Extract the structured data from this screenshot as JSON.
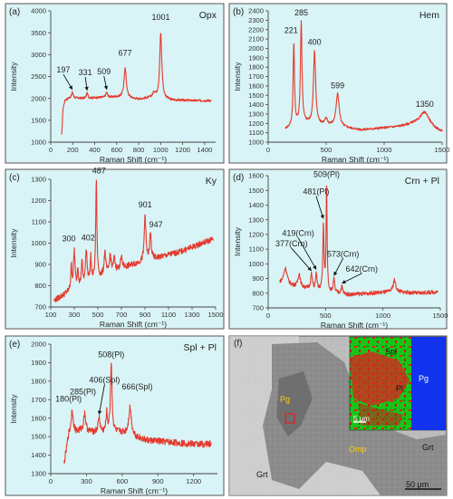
{
  "figure": {
    "panel_f": {
      "letter": "(f)",
      "labels": {
        "pg_left": "Pg",
        "pg_right": "Pg",
        "grt_left": "Grt",
        "grt_right": "Grt",
        "omp": "Omp",
        "spl": "Spl",
        "pl": "Pl",
        "inset_scale": "5 μm",
        "scale": "50 μm"
      }
    }
  },
  "chart_data": [
    {
      "id": "a",
      "type": "line",
      "letter": "(a)",
      "title": "Opx",
      "xlabel": "Raman Shift (cm⁻¹)",
      "ylabel": "Intensity",
      "xlim": [
        0,
        1500
      ],
      "ylim": [
        1000,
        4000
      ],
      "xticks": [
        0,
        200,
        400,
        600,
        800,
        1000,
        1200,
        1400
      ],
      "yticks": [
        1000,
        1500,
        2000,
        2500,
        3000,
        3500,
        4000
      ],
      "baseline": [
        [
          100,
          1150
        ],
        [
          112,
          1780
        ],
        [
          130,
          1960
        ],
        [
          170,
          2010
        ],
        [
          300,
          2000
        ],
        [
          450,
          2020
        ],
        [
          600,
          2030
        ],
        [
          800,
          1980
        ],
        [
          950,
          2030
        ],
        [
          1100,
          1960
        ],
        [
          1300,
          1950
        ],
        [
          1460,
          1950
        ]
      ],
      "peaks": [
        {
          "x": 197,
          "h": 130,
          "w": 9,
          "label": "197"
        },
        {
          "x": 331,
          "h": 110,
          "w": 9,
          "label": "331"
        },
        {
          "x": 509,
          "h": 110,
          "w": 9,
          "label": "509"
        },
        {
          "x": 677,
          "h": 670,
          "w": 13,
          "label": "677"
        },
        {
          "x": 1001,
          "h": 1490,
          "w": 11,
          "label": "1001"
        },
        {
          "x": 940,
          "h": 90,
          "w": 14
        }
      ],
      "noise": 25
    },
    {
      "id": "b",
      "type": "line",
      "letter": "(b)",
      "title": "Hem",
      "xlabel": "Raman Shift (cm⁻¹)",
      "ylabel": "Intensity",
      "xlim": [
        0,
        1500
      ],
      "ylim": [
        1000,
        2400
      ],
      "xticks": [
        0,
        500,
        1000,
        1500
      ],
      "yticks": [
        1000,
        1100,
        1200,
        1300,
        1400,
        1500,
        1600,
        1700,
        1800,
        1900,
        2000,
        2100,
        2200,
        2300,
        2400
      ],
      "baseline": [
        [
          150,
          1140
        ],
        [
          200,
          1160
        ],
        [
          300,
          1200
        ],
        [
          500,
          1180
        ],
        [
          800,
          1130
        ],
        [
          1100,
          1160
        ],
        [
          1250,
          1180
        ],
        [
          1500,
          1100
        ]
      ],
      "peaks": [
        {
          "x": 221,
          "h": 880,
          "w": 7,
          "label": "221"
        },
        {
          "x": 285,
          "h": 1080,
          "w": 8,
          "label": "285"
        },
        {
          "x": 400,
          "h": 780,
          "w": 11,
          "label": "400"
        },
        {
          "x": 599,
          "h": 350,
          "w": 16,
          "label": "599"
        },
        {
          "x": 1350,
          "h": 170,
          "w": 55,
          "label": "1350"
        },
        {
          "x": 500,
          "h": 60,
          "w": 14
        }
      ],
      "noise": 12
    },
    {
      "id": "c",
      "type": "line",
      "letter": "(c)",
      "title": "Ky",
      "xlabel": "Raman Shift (cm⁻¹)",
      "ylabel": "Intensity",
      "xlim": [
        100,
        1500
      ],
      "ylim": [
        700,
        1300
      ],
      "xticks": [
        100,
        300,
        500,
        700,
        900,
        1100,
        1300,
        1500
      ],
      "yticks": [
        700,
        800,
        900,
        1000,
        1100,
        1200,
        1300
      ],
      "baseline": [
        [
          130,
          730
        ],
        [
          250,
          770
        ],
        [
          450,
          820
        ],
        [
          600,
          860
        ],
        [
          800,
          900
        ],
        [
          1000,
          930
        ],
        [
          1200,
          960
        ],
        [
          1480,
          1020
        ]
      ],
      "peaks": [
        {
          "x": 300,
          "h": 180,
          "w": 7,
          "label": "300"
        },
        {
          "x": 402,
          "h": 160,
          "w": 8,
          "label": "402"
        },
        {
          "x": 487,
          "h": 470,
          "w": 6,
          "label": "487"
        },
        {
          "x": 901,
          "h": 220,
          "w": 8,
          "label": "901"
        },
        {
          "x": 947,
          "h": 120,
          "w": 8,
          "label": "947"
        },
        {
          "x": 275,
          "h": 110,
          "w": 6
        },
        {
          "x": 330,
          "h": 90,
          "w": 6
        },
        {
          "x": 365,
          "h": 110,
          "w": 6
        },
        {
          "x": 440,
          "h": 110,
          "w": 6
        },
        {
          "x": 560,
          "h": 110,
          "w": 8
        },
        {
          "x": 605,
          "h": 80,
          "w": 8
        },
        {
          "x": 640,
          "h": 60,
          "w": 8
        },
        {
          "x": 700,
          "h": 50,
          "w": 10
        }
      ],
      "noise": 14
    },
    {
      "id": "d",
      "type": "line",
      "letter": "(d)",
      "title": "Crn + Pl",
      "xlabel": "Raman Shift (cm⁻¹)",
      "ylabel": "Intensity",
      "xlim": [
        0,
        1500
      ],
      "ylim": [
        700,
        1600
      ],
      "xticks": [
        0,
        500,
        1000,
        1500
      ],
      "yticks": [
        700,
        800,
        900,
        1000,
        1100,
        1200,
        1300,
        1400,
        1500,
        1600
      ],
      "baseline": [
        [
          100,
          870
        ],
        [
          200,
          850
        ],
        [
          350,
          830
        ],
        [
          500,
          810
        ],
        [
          700,
          790
        ],
        [
          900,
          800
        ],
        [
          1100,
          810
        ],
        [
          1300,
          800
        ],
        [
          1480,
          810
        ]
      ],
      "peaks": [
        {
          "x": 377,
          "h": 100,
          "w": 9,
          "label": "377(Crn)"
        },
        {
          "x": 419,
          "h": 110,
          "w": 7,
          "label": "419(Crn)"
        },
        {
          "x": 481,
          "h": 450,
          "w": 6,
          "label": "481(Pl)"
        },
        {
          "x": 509,
          "h": 740,
          "w": 5,
          "label": "509(Pl)"
        },
        {
          "x": 573,
          "h": 90,
          "w": 7,
          "label": "573(Crn)"
        },
        {
          "x": 642,
          "h": 50,
          "w": 8,
          "label": "642(Crn)"
        },
        {
          "x": 150,
          "h": 110,
          "w": 18
        },
        {
          "x": 270,
          "h": 90,
          "w": 12
        },
        {
          "x": 1100,
          "h": 80,
          "w": 14
        }
      ],
      "noise": 13
    },
    {
      "id": "e",
      "type": "line",
      "letter": "(e)",
      "title": "Spl + Pl",
      "xlabel": "Raman Shift (cm⁻¹)",
      "ylabel": "Intensity",
      "xlim": [
        0,
        1400
      ],
      "ylim": [
        1300,
        2000
      ],
      "xticks": [
        0,
        300,
        600,
        900,
        1200
      ],
      "yticks": [
        1300,
        1400,
        1500,
        1600,
        1700,
        1800,
        1900,
        2000
      ],
      "baseline": [
        [
          110,
          1340
        ],
        [
          150,
          1500
        ],
        [
          250,
          1530
        ],
        [
          400,
          1520
        ],
        [
          600,
          1520
        ],
        [
          800,
          1480
        ],
        [
          1000,
          1470
        ],
        [
          1200,
          1460
        ],
        [
          1350,
          1460
        ]
      ],
      "peaks": [
        {
          "x": 180,
          "h": 130,
          "w": 12,
          "label": "180(Pl)"
        },
        {
          "x": 285,
          "h": 100,
          "w": 10,
          "label": "285(Pl)"
        },
        {
          "x": 406,
          "h": 80,
          "w": 10,
          "label": "406(Spl)"
        },
        {
          "x": 508,
          "h": 380,
          "w": 8,
          "label": "508(Pl)"
        },
        {
          "x": 666,
          "h": 150,
          "w": 14,
          "label": "666(Spl)"
        },
        {
          "x": 470,
          "h": 100,
          "w": 7
        }
      ],
      "noise": 18
    }
  ]
}
